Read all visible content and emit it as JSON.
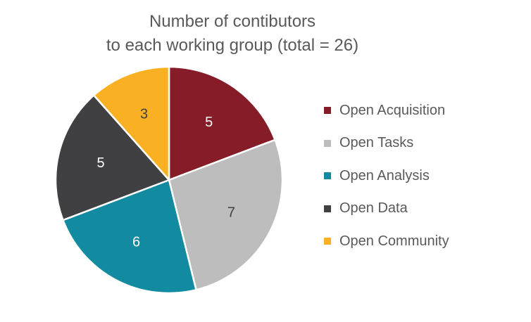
{
  "chart_data": {
    "type": "pie",
    "title": "Number of contibutors to each working group (total = 26)",
    "title_lines": [
      "Number of contibutors",
      "to each working group (total = 26)"
    ],
    "categories": [
      "Open Acquisition",
      "Open Tasks",
      "Open Analysis",
      "Open Data",
      "Open Community"
    ],
    "values": [
      5,
      7,
      6,
      5,
      3
    ],
    "colors": [
      "#851C27",
      "#BDBDBD",
      "#128BA0",
      "#404042",
      "#F9B123"
    ],
    "label_colors": [
      "#ffffff",
      "#404040",
      "#ffffff",
      "#ffffff",
      "#404040"
    ],
    "legend_position": "right",
    "start_angle": "12 o'clock",
    "direction": "clockwise"
  }
}
